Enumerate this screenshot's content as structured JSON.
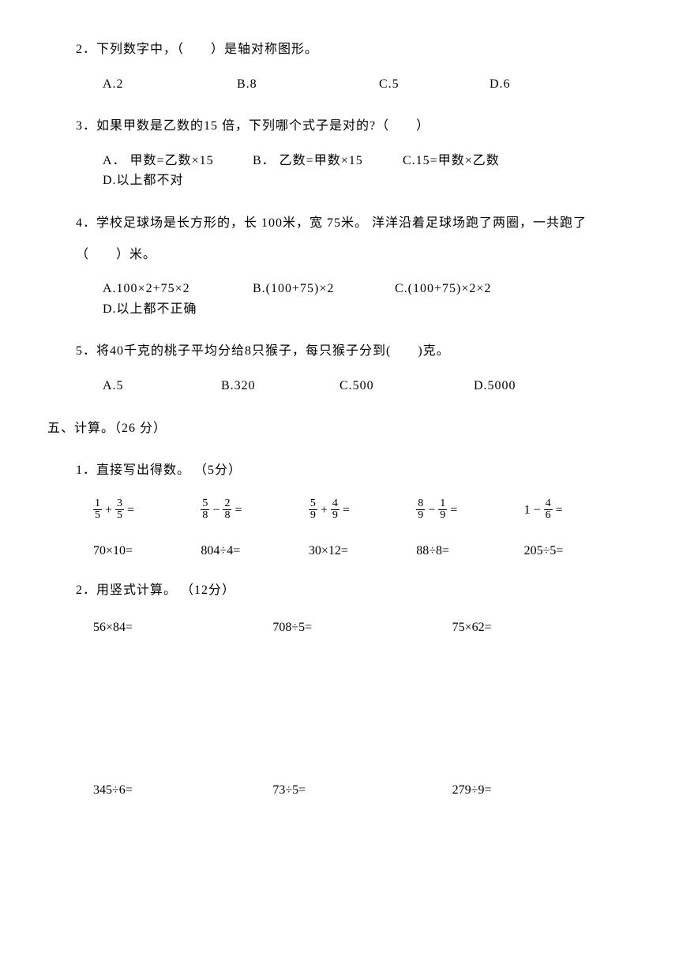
{
  "q2": {
    "num": "2．",
    "stem": "下列数字中，（　　）是轴对称图形。",
    "choices": [
      "A.2",
      "B.8",
      "C.5",
      "D.6"
    ],
    "widths": [
      170,
      180,
      140,
      100
    ]
  },
  "q3": {
    "num": "3．",
    "stem": "如果甲数是乙数的15 倍，下列哪个式子是对的?（　　）",
    "choices": [
      "A． 甲数=乙数×15",
      "B． 乙数=甲数×15",
      "C.15=甲数×乙数",
      "D.以上都不对"
    ],
    "widths": [
      190,
      190,
      170,
      140
    ]
  },
  "q4": {
    "num": "4．",
    "stem": "学校足球场是长方形的，长 100米，宽 75米。 洋洋沿着足球场跑了两圈，一共跑了",
    "stem2": "（　　）米。",
    "choices": [
      "A.100×2+75×2",
      "B.(100+75)×2",
      "C.(100+75)×2×2",
      "D.以上都不正确"
    ],
    "widths": [
      190,
      180,
      190,
      140
    ]
  },
  "q5": {
    "num": "5．",
    "stem": "将40千克的桃子平均分给8只猴子，每只猴子分到(　　)克。",
    "choices": [
      "A.5",
      "B.320",
      "C.500",
      "D.5000"
    ],
    "widths": [
      150,
      150,
      170,
      120
    ]
  },
  "section5": {
    "title": "五、计算。（26 分）"
  },
  "p51": {
    "title": "1．直接写出得数。 （5分）",
    "row1": [
      {
        "type": "fracadd",
        "a": [
          "1",
          "5"
        ],
        "op": "+",
        "b": [
          "3",
          "5"
        ]
      },
      {
        "type": "fracadd",
        "a": [
          "5",
          "8"
        ],
        "op": "−",
        "b": [
          "2",
          "8"
        ]
      },
      {
        "type": "fracadd",
        "a": [
          "5",
          "9"
        ],
        "op": "+",
        "b": [
          "4",
          "9"
        ]
      },
      {
        "type": "fracadd",
        "a": [
          "8",
          "9"
        ],
        "op": "−",
        "b": [
          "1",
          "9"
        ]
      },
      {
        "type": "onefrac",
        "lead": "1 −",
        "b": [
          "4",
          "6"
        ]
      }
    ],
    "row2": [
      "70×10=",
      "804÷4=",
      "30×12=",
      "88÷8=",
      "205÷5="
    ]
  },
  "p52": {
    "title": "2．用竖式计算。 （12分）",
    "row1": [
      "56×84=",
      "708÷5=",
      "75×62="
    ],
    "row2": [
      "345÷6=",
      "73÷5=",
      "279÷9="
    ]
  }
}
